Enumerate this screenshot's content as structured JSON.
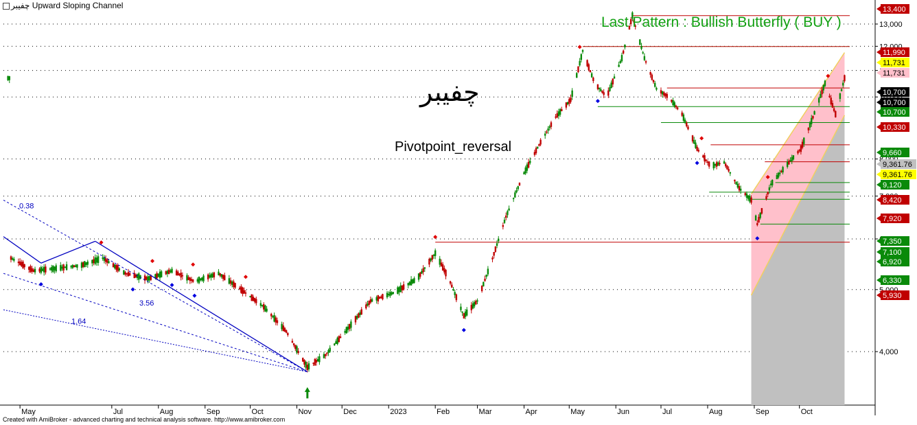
{
  "title": {
    "symbol": "چفیبر",
    "indicator": "Upward Sloping Channel"
  },
  "big_symbol": "چفیبر",
  "pivot_label": "Pivotpoint_reversal",
  "pattern_label": "Last Pattern : Bullish Butterfly ( BUY )",
  "footer": "Created with AmiBroker - advanced charting and technical analysis software. http://www.amibroker.com",
  "chart_data": {
    "type": "candlestick",
    "y_scale": "log",
    "ylim": [
      3300,
      14000
    ],
    "y_ticks": [
      {
        "value": 4000,
        "label": "4,000"
      },
      {
        "value": 5000,
        "label": "5,000"
      },
      {
        "value": 6000,
        "label": "6,000"
      },
      {
        "value": 7000,
        "label": "7,000"
      },
      {
        "value": 8000,
        "label": "8,000"
      },
      {
        "value": 10000,
        "label": "10,000"
      },
      {
        "value": 11000,
        "label": "11,000"
      },
      {
        "value": 12000,
        "label": "12,000"
      },
      {
        "value": 13000,
        "label": "13,000"
      }
    ],
    "x_labels": [
      "May",
      "Jul",
      "Aug",
      "Sep",
      "Oct",
      "Nov",
      "Dec",
      "2023",
      "Feb",
      "Mar",
      "Apr",
      "May",
      "Jun",
      "Jul",
      "Aug",
      "Sep",
      "Oct"
    ],
    "price_path": [
      [
        "2022-04-25",
        5600
      ],
      [
        "2022-05-10",
        5350
      ],
      [
        "2022-06-10",
        5450
      ],
      [
        "2022-06-25",
        5600
      ],
      [
        "2022-07-10",
        5300
      ],
      [
        "2022-07-25",
        5200
      ],
      [
        "2022-08-10",
        5350
      ],
      [
        "2022-08-25",
        5150
      ],
      [
        "2022-09-10",
        5300
      ],
      [
        "2022-09-25",
        5000
      ],
      [
        "2022-10-10",
        4700
      ],
      [
        "2022-10-25",
        4300
      ],
      [
        "2022-11-08",
        3780
      ],
      [
        "2022-11-20",
        3950
      ],
      [
        "2022-12-05",
        4350
      ],
      [
        "2022-12-20",
        4800
      ],
      [
        "2023-01-05",
        4950
      ],
      [
        "2023-01-20",
        5200
      ],
      [
        "2023-02-01",
        5700
      ],
      [
        "2023-02-10",
        5200
      ],
      [
        "2023-02-20",
        4550
      ],
      [
        "2023-03-01",
        4800
      ],
      [
        "2023-03-10",
        5500
      ],
      [
        "2023-03-20",
        6500
      ],
      [
        "2023-04-01",
        7600
      ],
      [
        "2023-04-12",
        8500
      ],
      [
        "2023-04-22",
        9300
      ],
      [
        "2023-05-02",
        9900
      ],
      [
        "2023-05-10",
        11800
      ],
      [
        "2023-05-18",
        10500
      ],
      [
        "2023-05-26",
        10000
      ],
      [
        "2023-06-05",
        11500
      ],
      [
        "2023-06-12",
        13400
      ],
      [
        "2023-06-20",
        11500
      ],
      [
        "2023-06-28",
        10300
      ],
      [
        "2023-07-06",
        10000
      ],
      [
        "2023-07-15",
        9400
      ],
      [
        "2023-07-25",
        8300
      ],
      [
        "2023-08-03",
        7800
      ],
      [
        "2023-08-12",
        7900
      ],
      [
        "2023-08-22",
        7200
      ],
      [
        "2023-08-30",
        6900
      ],
      [
        "2023-09-03",
        6330
      ],
      [
        "2023-09-12",
        7300
      ],
      [
        "2023-09-22",
        7800
      ],
      [
        "2023-10-02",
        8300
      ],
      [
        "2023-10-10",
        9300
      ],
      [
        "2023-10-18",
        10500
      ],
      [
        "2023-10-25",
        9400
      ],
      [
        "2023-10-31",
        10700
      ]
    ],
    "horizontal_levels": [
      {
        "value": 13400,
        "color": "#c00000"
      },
      {
        "value": 11990,
        "color": "#c00000"
      },
      {
        "value": 10330,
        "color": "#c00000"
      },
      {
        "value": 9660,
        "color": "#0a8a0a"
      },
      {
        "value": 9120,
        "color": "#0a8a0a"
      },
      {
        "value": 8420,
        "color": "#c00000"
      },
      {
        "value": 7920,
        "color": "#c00000"
      },
      {
        "value": 7350,
        "color": "#0a8a0a"
      },
      {
        "value": 7100,
        "color": "#0a8a0a"
      },
      {
        "value": 6920,
        "color": "#0a8a0a"
      },
      {
        "value": 6330,
        "color": "#0a8a0a"
      },
      {
        "value": 5930,
        "color": "#c00000"
      }
    ],
    "price_labels": [
      {
        "value": 13400,
        "text": "13,400",
        "bg": "#c00000",
        "fg": "#ffffff"
      },
      {
        "value": 11990,
        "text": "11,990",
        "bg": "#c00000",
        "fg": "#ffffff"
      },
      {
        "value": 11731,
        "text": "11,731",
        "bg": "#ffff00",
        "fg": "#000000"
      },
      {
        "value": 11731,
        "text": "11,731",
        "bg": "#ffc0cb",
        "fg": "#000000"
      },
      {
        "value": 10700,
        "text": "10,700",
        "bg": "#000000",
        "fg": "#ffffff"
      },
      {
        "value": 10700,
        "text": "10,700",
        "bg": "#000000",
        "fg": "#ffffff"
      },
      {
        "value": 10700,
        "text": "10,700",
        "bg": "#0a8a0a",
        "fg": "#ffffff"
      },
      {
        "value": 10330,
        "text": "10,330",
        "bg": "#c00000",
        "fg": "#ffffff"
      },
      {
        "value": 9660,
        "text": "9,660",
        "bg": "#0a8a0a",
        "fg": "#ffffff"
      },
      {
        "value": 9361.76,
        "text": "9,361.76",
        "bg": "#c0c0c0",
        "fg": "#000000"
      },
      {
        "value": 9361.76,
        "text": "9,361.76",
        "bg": "#ffff00",
        "fg": "#000000"
      },
      {
        "value": 9120,
        "text": "9,120",
        "bg": "#0a8a0a",
        "fg": "#ffffff"
      },
      {
        "value": 8420,
        "text": "8,420",
        "bg": "#c00000",
        "fg": "#ffffff"
      },
      {
        "value": 7920,
        "text": "7,920",
        "bg": "#c00000",
        "fg": "#ffffff"
      },
      {
        "value": 7350,
        "text": "7,350",
        "bg": "#0a8a0a",
        "fg": "#ffffff"
      },
      {
        "value": 7100,
        "text": "7,100",
        "bg": "#0a8a0a",
        "fg": "#ffffff"
      },
      {
        "value": 6920,
        "text": "6,920",
        "bg": "#0a8a0a",
        "fg": "#ffffff"
      },
      {
        "value": 6330,
        "text": "6,330",
        "bg": "#0a8a0a",
        "fg": "#ffffff"
      },
      {
        "value": 5930,
        "text": "5,930",
        "bg": "#c00000",
        "fg": "#ffffff"
      }
    ],
    "fib_labels": [
      "0.38",
      "3.56",
      "1.64"
    ],
    "channel": {
      "start": "2023-08-30",
      "end": "2023-10-31",
      "lower_start": 4900,
      "lower_end": 9361.76,
      "upper_start": 7050,
      "upper_end": 11731
    },
    "colors": {
      "up": "#0a8a0a",
      "down": "#c00000",
      "channel_fill": "#ffc0cb",
      "below_fill": "#c0c0c0",
      "trendline": "#0000c0"
    }
  }
}
